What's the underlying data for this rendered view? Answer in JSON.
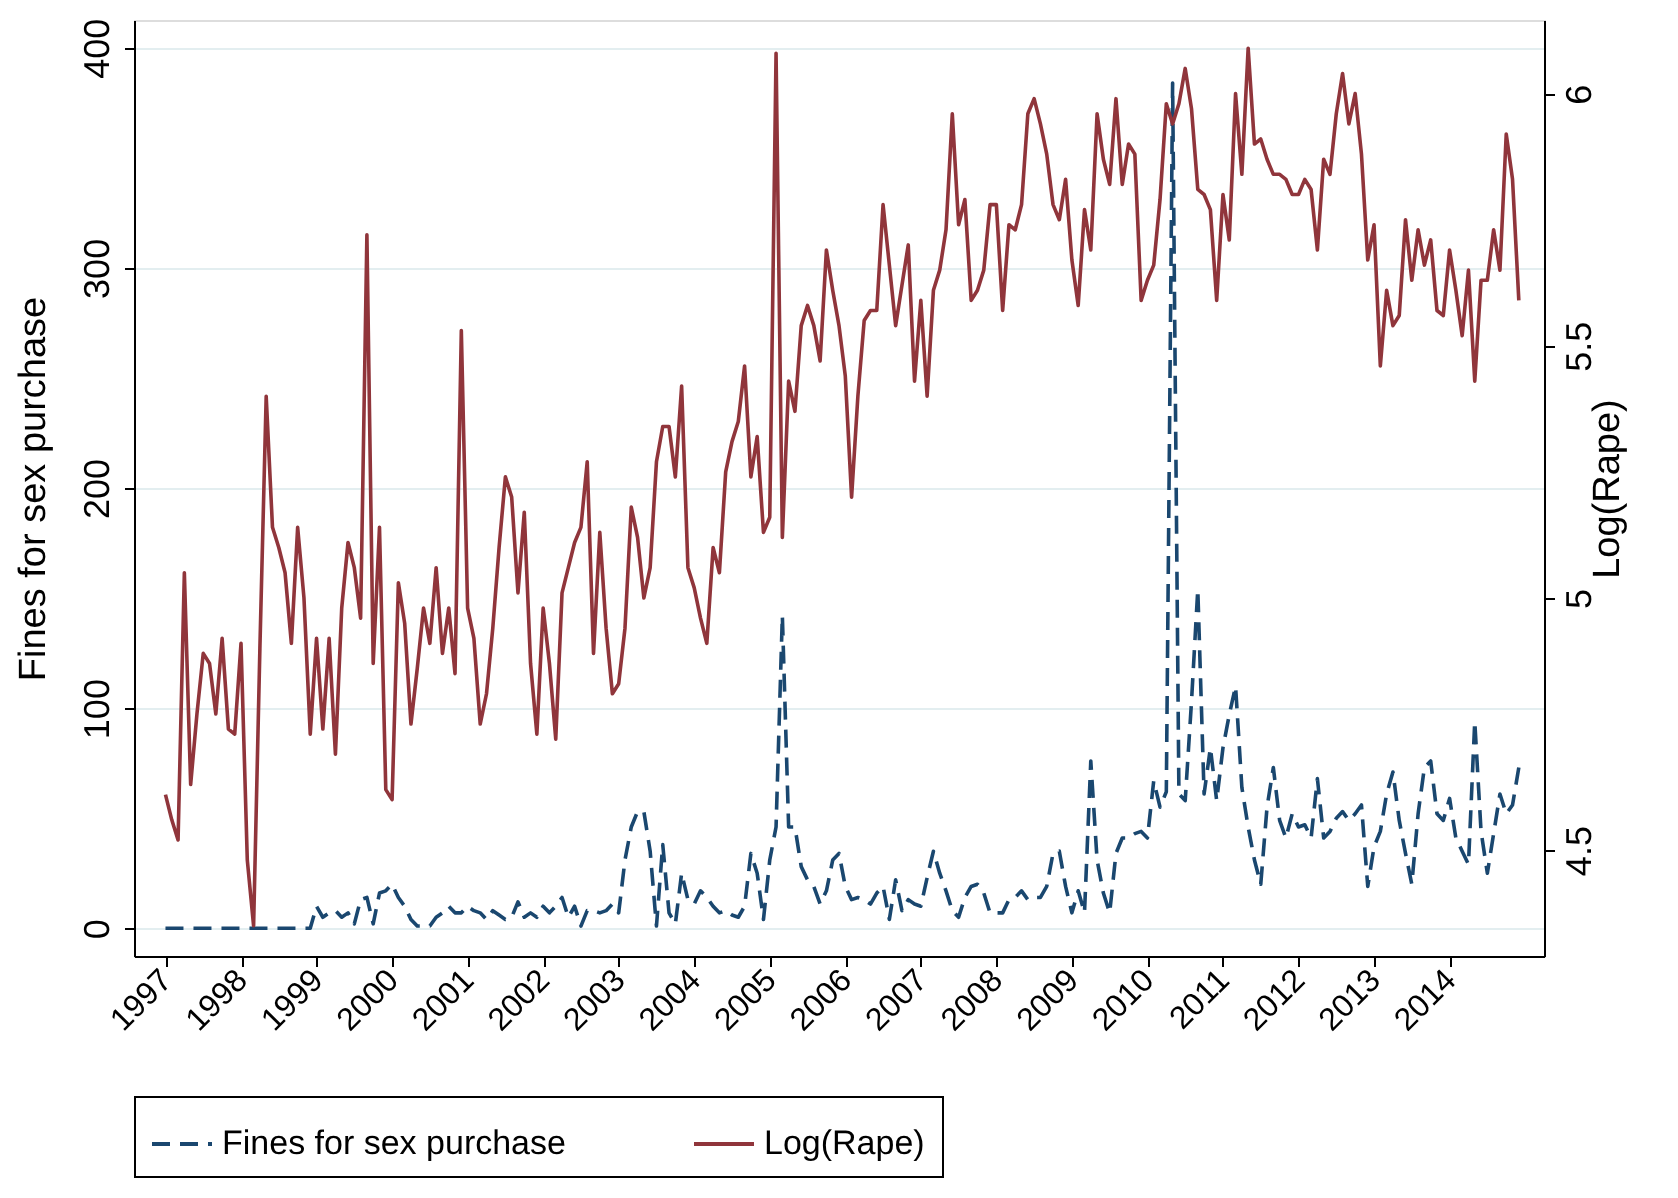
{
  "chart_data": {
    "type": "line",
    "ylabel": "Fines for sex purchase",
    "y2label": "Log(Rape)",
    "x": [
      "1997-01",
      "1997-02",
      "1997-03",
      "1997-04",
      "1997-05",
      "1997-06",
      "1997-07",
      "1997-08",
      "1997-09",
      "1997-10",
      "1997-11",
      "1997-12",
      "1998-01",
      "1998-02",
      "1998-03",
      "1998-04",
      "1998-05",
      "1998-06",
      "1998-07",
      "1998-08",
      "1998-09",
      "1998-10",
      "1998-11",
      "1998-12",
      "1999-01",
      "1999-02",
      "1999-03",
      "1999-04",
      "1999-05",
      "1999-06",
      "1999-07",
      "1999-08",
      "1999-09",
      "1999-10",
      "1999-11",
      "1999-12",
      "2000-01",
      "2000-02",
      "2000-03",
      "2000-04",
      "2000-05",
      "2000-06",
      "2000-07",
      "2000-08",
      "2000-09",
      "2000-10",
      "2000-11",
      "2000-12",
      "2001-01",
      "2001-02",
      "2001-03",
      "2001-04",
      "2001-05",
      "2001-06",
      "2001-07",
      "2001-08",
      "2001-09",
      "2001-10",
      "2001-11",
      "2001-12",
      "2002-01",
      "2002-02",
      "2002-03",
      "2002-04",
      "2002-05",
      "2002-06",
      "2002-07",
      "2002-08",
      "2002-09",
      "2002-10",
      "2002-11",
      "2002-12",
      "2003-01",
      "2003-02",
      "2003-03",
      "2003-04",
      "2003-05",
      "2003-06",
      "2003-07",
      "2003-08",
      "2003-09",
      "2003-10",
      "2003-11",
      "2003-12",
      "2004-01",
      "2004-02",
      "2004-03",
      "2004-04",
      "2004-05",
      "2004-06",
      "2004-07",
      "2004-08",
      "2004-09",
      "2004-10",
      "2004-11",
      "2004-12",
      "2005-01",
      "2005-02",
      "2005-03",
      "2005-04",
      "2005-05",
      "2005-06",
      "2005-07",
      "2005-08",
      "2005-09",
      "2005-10",
      "2005-11",
      "2005-12",
      "2006-01",
      "2006-02",
      "2006-03",
      "2006-04",
      "2006-05",
      "2006-06",
      "2006-07",
      "2006-08",
      "2006-09",
      "2006-10",
      "2006-11",
      "2006-12",
      "2007-01",
      "2007-02",
      "2007-03",
      "2007-04",
      "2007-05",
      "2007-06",
      "2007-07",
      "2007-08",
      "2007-09",
      "2007-10",
      "2007-11",
      "2007-12",
      "2008-01",
      "2008-02",
      "2008-03",
      "2008-04",
      "2008-05",
      "2008-06",
      "2008-07",
      "2008-08",
      "2008-09",
      "2008-10",
      "2008-11",
      "2008-12",
      "2009-01",
      "2009-02",
      "2009-03",
      "2009-04",
      "2009-05",
      "2009-06",
      "2009-07",
      "2009-08",
      "2009-09",
      "2009-10",
      "2009-11",
      "2009-12",
      "2010-01",
      "2010-02",
      "2010-03",
      "2010-04",
      "2010-05",
      "2010-06",
      "2010-07",
      "2010-08",
      "2010-09",
      "2010-10",
      "2010-11",
      "2010-12",
      "2011-01",
      "2011-02",
      "2011-03",
      "2011-04",
      "2011-05",
      "2011-06",
      "2011-07",
      "2011-08",
      "2011-09",
      "2011-10",
      "2011-11",
      "2011-12",
      "2012-01",
      "2012-02",
      "2012-03",
      "2012-04",
      "2012-05",
      "2012-06",
      "2012-07",
      "2012-08",
      "2012-09",
      "2012-10",
      "2012-11",
      "2012-12",
      "2013-01",
      "2013-02",
      "2013-03",
      "2013-04",
      "2013-05",
      "2013-06",
      "2013-07",
      "2013-08",
      "2013-09",
      "2013-10",
      "2013-11",
      "2013-12",
      "2014-01",
      "2014-02",
      "2014-03",
      "2014-04",
      "2014-05",
      "2014-06",
      "2014-07",
      "2014-08",
      "2014-09",
      "2014-10",
      "2014-11",
      "2014-12"
    ],
    "series": [
      {
        "name": "Fines for sex purchase",
        "color": "#1a476f",
        "line_style": "dashed",
        "values": [
          0,
          0,
          0,
          0,
          0,
          0,
          0,
          0,
          0,
          0,
          0,
          0,
          0,
          0,
          0,
          0,
          0,
          0,
          0,
          0,
          0,
          0,
          0,
          0,
          10,
          5,
          7,
          8,
          5,
          7,
          2,
          13,
          14,
          2,
          16,
          17,
          20,
          14,
          10,
          4,
          1,
          1,
          1,
          5,
          7,
          10,
          7,
          7,
          10,
          8,
          7,
          4,
          8,
          6,
          4,
          5,
          12,
          5,
          7,
          5,
          10,
          7,
          10,
          14,
          5,
          10,
          1,
          8,
          8,
          7,
          8,
          11,
          7,
          31,
          46,
          53,
          53,
          35,
          1,
          38,
          7,
          2,
          25,
          13,
          11,
          17,
          14,
          10,
          7,
          8,
          6,
          5,
          10,
          34,
          25,
          4,
          31,
          46,
          142,
          46,
          46,
          28,
          22,
          19,
          11,
          17,
          31,
          34,
          19,
          13,
          14,
          13,
          11,
          16,
          19,
          4,
          22,
          8,
          13,
          11,
          10,
          23,
          35,
          25,
          17,
          8,
          5,
          14,
          19,
          20,
          16,
          7,
          7,
          7,
          13,
          14,
          17,
          13,
          14,
          14,
          19,
          34,
          35,
          19,
          7,
          17,
          7,
          76,
          31,
          16,
          7,
          34,
          41,
          41,
          43,
          44,
          41,
          67,
          55,
          62,
          384,
          61,
          58,
          103,
          154,
          61,
          82,
          58,
          82,
          97,
          110,
          64,
          46,
          31,
          20,
          55,
          73,
          49,
          41,
          52,
          46,
          47,
          41,
          68,
          41,
          44,
          50,
          53,
          49,
          52,
          56,
          19,
          37,
          44,
          61,
          71,
          49,
          34,
          20,
          52,
          73,
          76,
          52,
          49,
          59,
          41,
          35,
          29,
          94,
          44,
          25,
          43,
          61,
          52,
          56,
          73
        ]
      },
      {
        "name": "Log(Rape)",
        "color": "#90353b",
        "line_style": "solid",
        "axis": "y2",
        "values": [
          4.61,
          4.56,
          4.52,
          5.05,
          4.63,
          4.77,
          4.89,
          4.87,
          4.77,
          4.92,
          4.74,
          4.73,
          4.91,
          4.48,
          4.35,
          4.9,
          5.4,
          5.14,
          5.1,
          5.05,
          4.91,
          5.14,
          5.0,
          4.73,
          4.92,
          4.74,
          4.92,
          4.69,
          4.98,
          5.11,
          5.06,
          4.96,
          5.72,
          4.87,
          5.14,
          4.62,
          4.6,
          5.03,
          4.95,
          4.75,
          4.86,
          4.98,
          4.91,
          5.06,
          4.89,
          4.98,
          4.85,
          5.53,
          4.98,
          4.92,
          4.75,
          4.81,
          4.94,
          5.1,
          5.24,
          5.2,
          5.01,
          5.17,
          4.87,
          4.73,
          4.98,
          4.87,
          4.72,
          5.01,
          5.06,
          5.11,
          5.14,
          5.27,
          4.89,
          5.13,
          4.94,
          4.81,
          4.83,
          4.94,
          5.18,
          5.12,
          5.0,
          5.06,
          5.27,
          5.34,
          5.34,
          5.24,
          5.42,
          5.06,
          5.02,
          4.96,
          4.91,
          5.1,
          5.05,
          5.25,
          5.31,
          5.35,
          5.46,
          5.24,
          5.32,
          5.13,
          5.16,
          6.08,
          5.12,
          5.43,
          5.37,
          5.54,
          5.58,
          5.54,
          5.47,
          5.69,
          5.61,
          5.54,
          5.44,
          5.2,
          5.4,
          5.55,
          5.57,
          5.57,
          5.78,
          5.66,
          5.54,
          5.62,
          5.7,
          5.43,
          5.59,
          5.4,
          5.61,
          5.65,
          5.73,
          5.96,
          5.74,
          5.79,
          5.59,
          5.61,
          5.65,
          5.78,
          5.78,
          5.57,
          5.74,
          5.73,
          5.78,
          5.96,
          5.99,
          5.94,
          5.88,
          5.78,
          5.75,
          5.83,
          5.67,
          5.58,
          5.77,
          5.69,
          5.96,
          5.87,
          5.82,
          5.99,
          5.82,
          5.9,
          5.88,
          5.59,
          5.63,
          5.66,
          5.79,
          5.98,
          5.94,
          5.98,
          6.05,
          5.97,
          5.81,
          5.8,
          5.77,
          5.59,
          5.8,
          5.71,
          6.0,
          5.84,
          6.09,
          5.9,
          5.91,
          5.87,
          5.84,
          5.84,
          5.83,
          5.8,
          5.8,
          5.83,
          5.81,
          5.69,
          5.87,
          5.84,
          5.96,
          6.04,
          5.94,
          6.0,
          5.88,
          5.67,
          5.74,
          5.46,
          5.61,
          5.54,
          5.56,
          5.75,
          5.63,
          5.73,
          5.66,
          5.71,
          5.57,
          5.56,
          5.69,
          5.61,
          5.52,
          5.65,
          5.43,
          5.63,
          5.63,
          5.73,
          5.65,
          5.92,
          5.83,
          5.59
        ]
      }
    ],
    "xlim": [
      "1996-08",
      "2015-04"
    ],
    "xticks": [
      "1997",
      "1998",
      "1999",
      "2000",
      "2001",
      "2002",
      "2003",
      "2004",
      "2005",
      "2006",
      "2007",
      "2008",
      "2009",
      "2010",
      "2011",
      "2012",
      "2013",
      "2014"
    ],
    "ylim": [
      -12.6,
      412.6
    ],
    "yticks": [
      0,
      100,
      200,
      300,
      400
    ],
    "y2lim": [
      4.29,
      6.146
    ],
    "y2ticks": [
      4.5,
      5,
      5.5,
      6
    ],
    "grid": "y",
    "legend": "bottom"
  }
}
